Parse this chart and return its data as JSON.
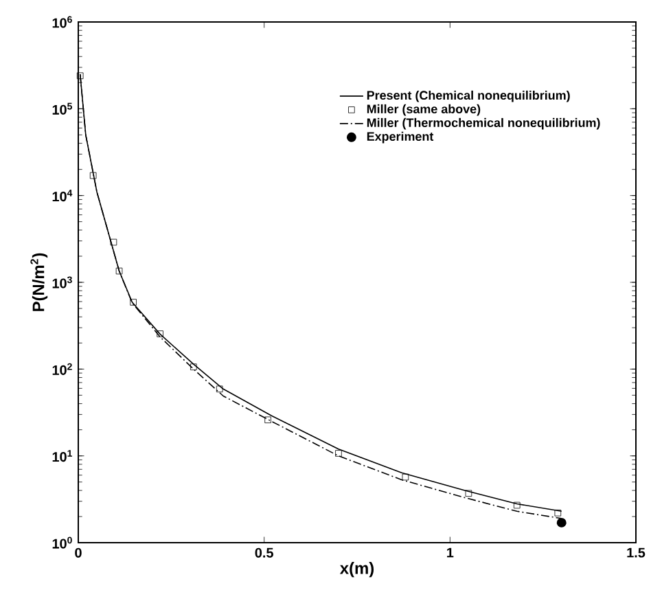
{
  "chart_data": {
    "type": "line",
    "xlabel": "x(m)",
    "ylabel": "P(N/m$^{2}$)",
    "log": "y",
    "xlim": [
      0,
      1.5
    ],
    "ylim": [
      1,
      1000000
    ],
    "xticks": [
      0,
      0.5,
      1,
      1.5
    ],
    "yticks": [
      {
        "value": 1,
        "label": "10$^{0}$"
      },
      {
        "value": 10,
        "label": "10$^{1}$"
      },
      {
        "value": 100,
        "label": "10$^{2}$"
      },
      {
        "value": 1000,
        "label": "10$^{3}$"
      },
      {
        "value": 10000,
        "label": "10$^{4}$"
      },
      {
        "value": 100000,
        "label": "10$^{5}$"
      },
      {
        "value": 1000000,
        "label": "10$^{6}$"
      }
    ],
    "grid": false,
    "legend": "top right",
    "series": [
      {
        "name": "Present (Chemical nonequilibrium)",
        "color": "#000000",
        "marker": "none",
        "line_style": "solid",
        "x": [
          0.005,
          0.02,
          0.05,
          0.11,
          0.145,
          0.22,
          0.31,
          0.39,
          0.52,
          0.7,
          0.87,
          1.04,
          1.18,
          1.3
        ],
        "values": [
          250000,
          50000,
          11000,
          1350,
          590,
          253,
          114,
          59,
          29,
          12,
          6.4,
          4.0,
          2.8,
          2.3
        ]
      },
      {
        "name": "Miller (same above)",
        "type": "scatter",
        "color": "#000000",
        "marker": "square",
        "x": [
          0.005,
          0.04,
          0.095,
          0.11,
          0.148,
          0.22,
          0.31,
          0.38,
          0.51,
          0.7,
          0.88,
          1.05,
          1.18,
          1.29
        ],
        "values": [
          240000,
          17000,
          2900,
          1350,
          590,
          255,
          106,
          59,
          26,
          10.7,
          5.7,
          3.7,
          2.7,
          2.2
        ]
      },
      {
        "name": "Miller (Thermochemical nonequilibrium)",
        "color": "#000000",
        "marker": "none",
        "line_style": "dashdot",
        "x": [
          0.005,
          0.02,
          0.05,
          0.11,
          0.145,
          0.22,
          0.31,
          0.39,
          0.52,
          0.7,
          0.87,
          1.04,
          1.18,
          1.3
        ],
        "values": [
          250000,
          50000,
          11000,
          1350,
          580,
          235,
          100,
          49,
          25,
          10,
          5.3,
          3.3,
          2.3,
          1.9
        ]
      },
      {
        "name": "Experiment",
        "type": "scatter",
        "color": "#000000",
        "marker": "circle",
        "x": [
          1.3
        ],
        "values": [
          1.7
        ]
      }
    ]
  }
}
